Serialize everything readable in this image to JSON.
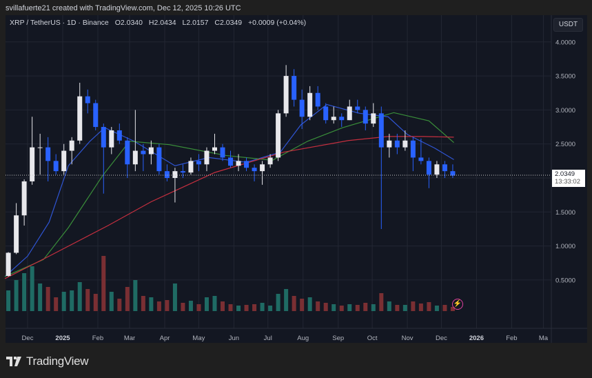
{
  "credit": "svillafuerte21 created with TradingView.com, Dec 12, 2025 10:26 UTC",
  "legend": {
    "symbol": "XRP / TetherUS · 1D · Binance",
    "open": "O2.0340",
    "high": "H2.0434",
    "low": "L2.0157",
    "close": "C2.0349",
    "change": "+0.0009 (+0.04%)"
  },
  "currency": "USDT",
  "last_price": {
    "value": "2.0349",
    "countdown": "13:33:02"
  },
  "brand": "TradingView",
  "colors": {
    "up": "#e8e8ec",
    "down": "#2962ff",
    "ma_fast": "#2f55d4",
    "ma_mid": "#3a8f3a",
    "ma_slow": "#c62f3f",
    "vol_up": "#1f6b64",
    "vol_down": "#7a2f33"
  },
  "icons": {
    "alert": "lightning-icon",
    "logo": "tradingview-logo-icon"
  },
  "chart_data": {
    "type": "candlestick",
    "title": "XRP / TetherUS · 1D · Binance",
    "ylim": [
      0,
      4.3
    ],
    "grid": true,
    "y_ticks": [
      "4.0000",
      "3.5000",
      "3.0000",
      "2.5000",
      "2.0000",
      "1.5000",
      "1.0000",
      "0.5000"
    ],
    "x_ticks": [
      {
        "label": "Dec",
        "date": "2024-12-01",
        "bold": false
      },
      {
        "label": "2025",
        "date": "2025-01-01",
        "bold": true
      },
      {
        "label": "Feb",
        "date": "2025-02-01",
        "bold": false
      },
      {
        "label": "Mar",
        "date": "2025-03-01",
        "bold": false
      },
      {
        "label": "Apr",
        "date": "2025-04-01",
        "bold": false
      },
      {
        "label": "May",
        "date": "2025-05-01",
        "bold": false
      },
      {
        "label": "Jun",
        "date": "2025-06-01",
        "bold": false
      },
      {
        "label": "Jul",
        "date": "2025-07-01",
        "bold": false
      },
      {
        "label": "Aug",
        "date": "2025-08-01",
        "bold": false
      },
      {
        "label": "Sep",
        "date": "2025-09-01",
        "bold": false
      },
      {
        "label": "Oct",
        "date": "2025-10-01",
        "bold": false
      },
      {
        "label": "Nov",
        "date": "2025-11-01",
        "bold": false
      },
      {
        "label": "Dec",
        "date": "2025-12-01",
        "bold": false
      },
      {
        "label": "2026",
        "date": "2026-01-01",
        "bold": true
      },
      {
        "label": "Feb",
        "date": "2026-02-01",
        "bold": false
      },
      {
        "label": "Ma",
        "date": "2026-03-01",
        "bold": false
      }
    ],
    "candles": [
      [
        "2024-11-11",
        0.56,
        0.91,
        0.55,
        0.9,
        30
      ],
      [
        "2024-11-18",
        0.9,
        1.63,
        0.88,
        1.45,
        45
      ],
      [
        "2024-11-25",
        1.45,
        1.98,
        1.3,
        1.95,
        55
      ],
      [
        "2024-12-02",
        1.95,
        2.9,
        1.9,
        2.45,
        65
      ],
      [
        "2024-12-09",
        2.45,
        2.65,
        2.05,
        2.45,
        40
      ],
      [
        "2024-12-16",
        2.45,
        2.6,
        1.95,
        2.25,
        35
      ],
      [
        "2024-12-23",
        2.25,
        2.35,
        2.05,
        2.1,
        20
      ],
      [
        "2024-12-30",
        2.1,
        2.5,
        2.05,
        2.4,
        28
      ],
      [
        "2025-01-06",
        2.4,
        2.6,
        2.2,
        2.55,
        30
      ],
      [
        "2025-01-13",
        2.55,
        3.4,
        2.5,
        3.2,
        42
      ],
      [
        "2025-01-20",
        3.2,
        3.3,
        2.95,
        3.1,
        32
      ],
      [
        "2025-01-27",
        3.1,
        3.15,
        2.7,
        2.75,
        25
      ],
      [
        "2025-02-03",
        2.75,
        2.8,
        1.77,
        2.45,
        80
      ],
      [
        "2025-02-10",
        2.45,
        2.75,
        2.35,
        2.7,
        28
      ],
      [
        "2025-02-17",
        2.7,
        2.8,
        2.5,
        2.55,
        18
      ],
      [
        "2025-02-24",
        2.55,
        2.6,
        2.0,
        2.2,
        35
      ],
      [
        "2025-03-03",
        2.2,
        3.0,
        2.1,
        2.4,
        45
      ],
      [
        "2025-03-10",
        2.4,
        2.5,
        2.1,
        2.35,
        22
      ],
      [
        "2025-03-17",
        2.35,
        2.55,
        2.2,
        2.45,
        20
      ],
      [
        "2025-03-24",
        2.45,
        2.5,
        2.05,
        2.1,
        14
      ],
      [
        "2025-03-31",
        2.1,
        2.2,
        1.95,
        2.0,
        16
      ],
      [
        "2025-04-07",
        2.0,
        2.15,
        1.64,
        2.1,
        40
      ],
      [
        "2025-04-14",
        2.1,
        2.2,
        2.0,
        2.08,
        12
      ],
      [
        "2025-04-21",
        2.08,
        2.3,
        2.05,
        2.25,
        15
      ],
      [
        "2025-04-28",
        2.25,
        2.35,
        2.1,
        2.2,
        10
      ],
      [
        "2025-05-05",
        2.2,
        2.45,
        2.1,
        2.4,
        20
      ],
      [
        "2025-05-12",
        2.4,
        2.65,
        2.35,
        2.45,
        22
      ],
      [
        "2025-05-19",
        2.45,
        2.5,
        2.25,
        2.3,
        14
      ],
      [
        "2025-05-26",
        2.3,
        2.4,
        2.15,
        2.18,
        10
      ],
      [
        "2025-06-02",
        2.18,
        2.35,
        2.1,
        2.25,
        8
      ],
      [
        "2025-06-09",
        2.25,
        2.3,
        2.1,
        2.15,
        9
      ],
      [
        "2025-06-16",
        2.15,
        2.2,
        1.95,
        2.1,
        10
      ],
      [
        "2025-06-23",
        2.1,
        2.25,
        1.9,
        2.2,
        12
      ],
      [
        "2025-06-30",
        2.2,
        2.35,
        2.15,
        2.3,
        8
      ],
      [
        "2025-07-07",
        2.3,
        3.0,
        2.25,
        2.95,
        25
      ],
      [
        "2025-07-14",
        2.95,
        3.66,
        2.9,
        3.5,
        32
      ],
      [
        "2025-07-21",
        3.5,
        3.6,
        3.05,
        3.15,
        22
      ],
      [
        "2025-07-28",
        3.15,
        3.3,
        2.72,
        2.9,
        18
      ],
      [
        "2025-08-04",
        2.9,
        3.35,
        2.85,
        3.25,
        20
      ],
      [
        "2025-08-11",
        3.25,
        3.35,
        3.0,
        3.05,
        14
      ],
      [
        "2025-08-18",
        3.05,
        3.1,
        2.8,
        2.85,
        12
      ],
      [
        "2025-08-25",
        2.85,
        3.05,
        2.8,
        2.9,
        10
      ],
      [
        "2025-09-01",
        2.9,
        2.95,
        2.75,
        2.85,
        8
      ],
      [
        "2025-09-08",
        2.85,
        3.15,
        2.85,
        3.05,
        10
      ],
      [
        "2025-09-15",
        3.05,
        3.15,
        2.95,
        3.0,
        9
      ],
      [
        "2025-09-22",
        3.0,
        3.05,
        2.7,
        2.8,
        12
      ],
      [
        "2025-09-29",
        2.8,
        3.1,
        2.75,
        2.95,
        10
      ],
      [
        "2025-10-06",
        2.95,
        3.05,
        1.25,
        2.45,
        26
      ],
      [
        "2025-10-13",
        2.45,
        2.65,
        2.3,
        2.55,
        14
      ],
      [
        "2025-10-20",
        2.55,
        2.65,
        2.35,
        2.45,
        9
      ],
      [
        "2025-10-27",
        2.45,
        2.7,
        2.4,
        2.55,
        9
      ],
      [
        "2025-11-03",
        2.55,
        2.6,
        2.1,
        2.3,
        14
      ],
      [
        "2025-11-10",
        2.3,
        2.58,
        2.2,
        2.25,
        11
      ],
      [
        "2025-11-17",
        2.25,
        2.3,
        1.85,
        2.05,
        13
      ],
      [
        "2025-11-24",
        2.05,
        2.25,
        2.0,
        2.2,
        8
      ],
      [
        "2025-12-01",
        2.2,
        2.25,
        2.0,
        2.1,
        9
      ],
      [
        "2025-12-08",
        2.1,
        2.2,
        2.0,
        2.0349,
        6
      ]
    ],
    "moving_averages": [
      {
        "color": "#2f55d4",
        "points": [
          [
            "2024-11-11",
            0.55
          ],
          [
            "2024-12-01",
            0.85
          ],
          [
            "2024-12-20",
            1.35
          ],
          [
            "2025-01-06",
            2.18
          ],
          [
            "2025-01-25",
            2.54
          ],
          [
            "2025-02-07",
            2.74
          ],
          [
            "2025-03-05",
            2.54
          ],
          [
            "2025-04-10",
            2.18
          ],
          [
            "2025-05-10",
            2.3
          ],
          [
            "2025-06-12",
            2.23
          ],
          [
            "2025-07-12",
            2.38
          ],
          [
            "2025-07-30",
            2.78
          ],
          [
            "2025-08-22",
            3.08
          ],
          [
            "2025-09-20",
            2.95
          ],
          [
            "2025-10-15",
            2.9
          ],
          [
            "2025-11-01",
            2.64
          ],
          [
            "2025-11-25",
            2.44
          ],
          [
            "2025-12-12",
            2.27
          ]
        ]
      },
      {
        "color": "#3a8f3a",
        "points": [
          [
            "2024-11-11",
            0.55
          ],
          [
            "2024-12-15",
            0.8
          ],
          [
            "2025-01-06",
            1.27
          ],
          [
            "2025-02-05",
            2.03
          ],
          [
            "2025-03-01",
            2.54
          ],
          [
            "2025-04-05",
            2.49
          ],
          [
            "2025-05-25",
            2.33
          ],
          [
            "2025-07-05",
            2.26
          ],
          [
            "2025-08-05",
            2.54
          ],
          [
            "2025-09-05",
            2.74
          ],
          [
            "2025-10-20",
            2.96
          ],
          [
            "2025-11-20",
            2.84
          ],
          [
            "2025-12-12",
            2.52
          ]
        ]
      },
      {
        "color": "#c62f3f",
        "points": [
          [
            "2024-11-11",
            0.52
          ],
          [
            "2024-12-20",
            0.85
          ],
          [
            "2025-02-10",
            1.3
          ],
          [
            "2025-03-20",
            1.65
          ],
          [
            "2025-05-15",
            2.08
          ],
          [
            "2025-07-15",
            2.38
          ],
          [
            "2025-09-10",
            2.55
          ],
          [
            "2025-10-15",
            2.61
          ],
          [
            "2025-11-15",
            2.61
          ],
          [
            "2025-12-12",
            2.6
          ]
        ]
      }
    ]
  }
}
